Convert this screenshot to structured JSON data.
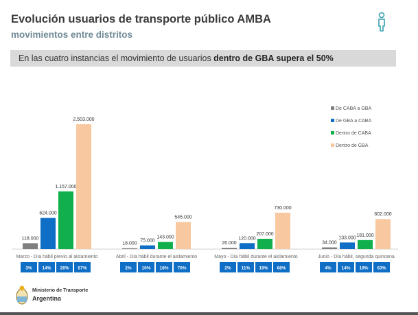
{
  "header": {
    "title": "Evolución usuarios de transporte público AMBA",
    "subtitle": "movimientos entre distritos",
    "banner_prefix": "En las cuatro instancias el movimiento de usuarios ",
    "banner_bold": "dentro de GBA supera el 50%",
    "icon": "person-icon"
  },
  "footer": {
    "ministry": "Ministerio de Transporte",
    "country": "Argentina",
    "logo": "coat-of-arms-icon"
  },
  "chart_data": {
    "type": "bar",
    "categories": [
      "Marzo - Día hábil previo al aislamiento",
      "Abril - Día hábil durante el aislamiento",
      "Mayo - Día hábil durante el aislamiento",
      "Junio - Día hábil, segunda quincena"
    ],
    "series": [
      {
        "name": "De CABA a GBA",
        "color": "#7f7f7f",
        "values": [
          118000,
          18000,
          26000,
          34000
        ],
        "labels": [
          "118.000",
          "18.000",
          "26.000",
          "34.000"
        ],
        "shares": [
          "3%",
          "2%",
          "2%",
          "4%"
        ]
      },
      {
        "name": "De GBA a CABA",
        "color": "#0f6ec5",
        "values": [
          624000,
          75000,
          120000,
          133000
        ],
        "labels": [
          "624.000",
          "75.000",
          "120.000",
          "133.000"
        ],
        "shares": [
          "14%",
          "10%",
          "11%",
          "14%"
        ]
      },
      {
        "name": "Dentro de CABA",
        "color": "#12b04c",
        "values": [
          1157000,
          143000,
          207000,
          181000
        ],
        "labels": [
          "1.157.000",
          "143.000",
          "207.000",
          "181.000"
        ],
        "shares": [
          "26%",
          "18%",
          "19%",
          "19%"
        ]
      },
      {
        "name": "Dentro de GBA",
        "color": "#f8c9a0",
        "values": [
          2503000,
          545000,
          730000,
          602000
        ],
        "labels": [
          "2.503.000",
          "545.000",
          "730.000",
          "602.000"
        ],
        "shares": [
          "57%",
          "70%",
          "68%",
          "63%"
        ]
      }
    ],
    "legend": "top-right",
    "grid": false,
    "share_box_color": "#0f6ec5"
  }
}
